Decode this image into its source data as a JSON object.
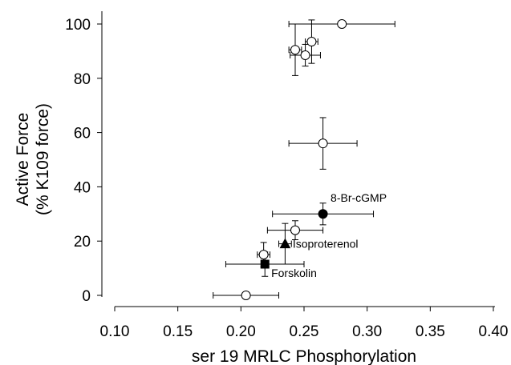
{
  "chart_data": {
    "type": "scatter",
    "title": "",
    "xlabel": "ser 19 MRLC Phosphorylation",
    "ylabel_lines": [
      "Active Force",
      "(% K109 force)"
    ],
    "xlim": [
      0.1,
      0.4
    ],
    "ylim": [
      0,
      100
    ],
    "x_ticks": [
      "0.10",
      "0.15",
      "0.20",
      "0.25",
      "0.30",
      "0.35",
      "0.40"
    ],
    "y_ticks": [
      "0",
      "20",
      "40",
      "60",
      "80",
      "100"
    ],
    "grid": false,
    "series": [
      {
        "marker": "open-circle",
        "points": [
          {
            "x": 0.204,
            "y": 0.0,
            "xerr": 0.026,
            "yerr": 0.0
          },
          {
            "x": 0.218,
            "y": 15.0,
            "xerr": 0.005,
            "yerr": 4.5
          },
          {
            "x": 0.243,
            "y": 24.0,
            "xerr": 0.022,
            "yerr": 3.5
          },
          {
            "x": 0.265,
            "y": 56.0,
            "xerr": 0.027,
            "yerr": 9.5
          },
          {
            "x": 0.243,
            "y": 90.5,
            "xerr": 0.005,
            "yerr": 9.5
          },
          {
            "x": 0.251,
            "y": 88.5,
            "xerr": 0.012,
            "yerr": 4.0
          },
          {
            "x": 0.256,
            "y": 93.5,
            "xerr": 0.005,
            "yerr": 8.0
          },
          {
            "x": 0.28,
            "y": 100.0,
            "xerr": 0.042,
            "yerr": 0.0
          }
        ]
      },
      {
        "marker": "filled-circle",
        "points": [
          {
            "x": 0.265,
            "y": 30.0,
            "xerr": 0.04,
            "yerr": 4.0
          }
        ]
      },
      {
        "marker": "filled-triangle",
        "points": [
          {
            "x": 0.235,
            "y": 19.0,
            "xerr": 0.005,
            "yerr": 7.5
          }
        ]
      },
      {
        "marker": "filled-square",
        "points": [
          {
            "x": 0.219,
            "y": 11.5,
            "xerr": 0.031,
            "yerr": 4.5
          }
        ]
      }
    ],
    "annotations": [
      {
        "text": "8-Br-cGMP",
        "x": 0.271,
        "y": 34.5
      },
      {
        "text": "Isoproterenol",
        "x": 0.241,
        "y": 17.5
      },
      {
        "text": "Forskolin",
        "x": 0.224,
        "y": 6.8
      }
    ],
    "colors": {
      "marker": "#000000",
      "open_fill": "#ffffff"
    }
  }
}
